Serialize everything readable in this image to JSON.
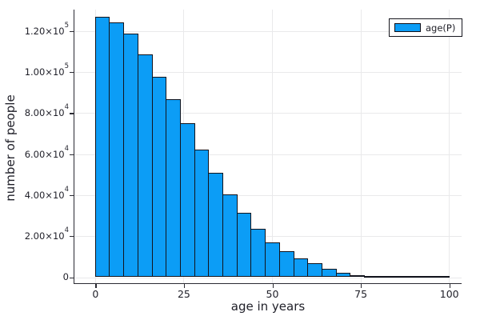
{
  "figure": {
    "background": "#ffffff"
  },
  "chart_data": {
    "type": "bar",
    "subtype": "histogram",
    "title": "",
    "xlabel": "age in years",
    "ylabel": "number of people",
    "legend": {
      "label": "age(P)",
      "position": "top-right"
    },
    "bar_fill": "#0c9df6",
    "bar_stroke": "#12141d",
    "grid": true,
    "bin_start": 0,
    "bin_width": 4,
    "values": [
      127000,
      124000,
      118600,
      108700,
      97800,
      86900,
      74900,
      62300,
      50900,
      40200,
      31400,
      23700,
      17100,
      12600,
      9200,
      6900,
      4100,
      2100,
      1100,
      550,
      300,
      160,
      90,
      50,
      25
    ],
    "xlim": [
      -6,
      103.5
    ],
    "ylim": [
      0,
      130500
    ],
    "xticks": [
      {
        "v": 0,
        "label": "0"
      },
      {
        "v": 25,
        "label": "25"
      },
      {
        "v": 50,
        "label": "50"
      },
      {
        "v": 75,
        "label": "75"
      },
      {
        "v": 100,
        "label": "100"
      }
    ],
    "yticks": [
      {
        "v": 0,
        "label": "0"
      },
      {
        "v": 20000,
        "label": "2.00×10^4"
      },
      {
        "v": 40000,
        "label": "4.00×10^4"
      },
      {
        "v": 60000,
        "label": "6.00×10^4"
      },
      {
        "v": 80000,
        "label": "8.00×10^4"
      },
      {
        "v": 100000,
        "label": "1.00×10^5"
      },
      {
        "v": 120000,
        "label": "1.20×10^5"
      }
    ]
  }
}
